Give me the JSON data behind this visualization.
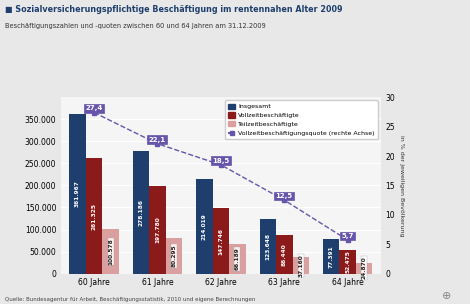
{
  "title": "Sozialversicherungspflichtige Beschäftigung im rentennahen Alter 2009",
  "subtitle": "Beschäftigungszahlen und -quoten zwischen 60 und 64 Jahren am 31.12.2009",
  "source": "Quelle: Bundesagentur für Arbeit, Beschäftigungsstatistik, 2010 und eigene Berechnungen",
  "categories": [
    "60 Jahre",
    "61 Jahre",
    "62 Jahre",
    "63 Jahre",
    "64 Jahre"
  ],
  "insgesamt": [
    361967,
    278186,
    214019,
    123648,
    77391
  ],
  "vollzeit": [
    261325,
    197780,
    147746,
    86440,
    52475
  ],
  "teilzeit": [
    100578,
    80295,
    66189,
    37160,
    24870
  ],
  "quote": [
    27.4,
    22.1,
    18.5,
    12.5,
    5.7
  ],
  "bar_color_insgesamt": "#1e3f6e",
  "bar_color_vollzeit": "#8b1a1a",
  "bar_color_teilzeit": "#daa0a0",
  "line_color": "#6655aa",
  "legend_insgesamt": "Insgesamt",
  "legend_vollzeit": "Vollzeitbeschäftigte",
  "legend_teilzeit": "Teilzeitbeschäftigte",
  "legend_quote": "Vollzeitbeschäftigungsquote (rechte Achse)",
  "ylim_left": [
    0,
    400000
  ],
  "ylim_right": [
    0,
    30
  ],
  "ylabel_right": "in % der jeweiligen Bevölkerung",
  "yticks_left": [
    0,
    50000,
    100000,
    150000,
    200000,
    250000,
    300000,
    350000
  ],
  "yticks_right": [
    0,
    5,
    10,
    15,
    20,
    25,
    30
  ],
  "background_color": "#e8e8e8",
  "plot_bg_color": "#f5f5f5",
  "title_color": "#1e3f6e",
  "grid_color": "#ffffff"
}
